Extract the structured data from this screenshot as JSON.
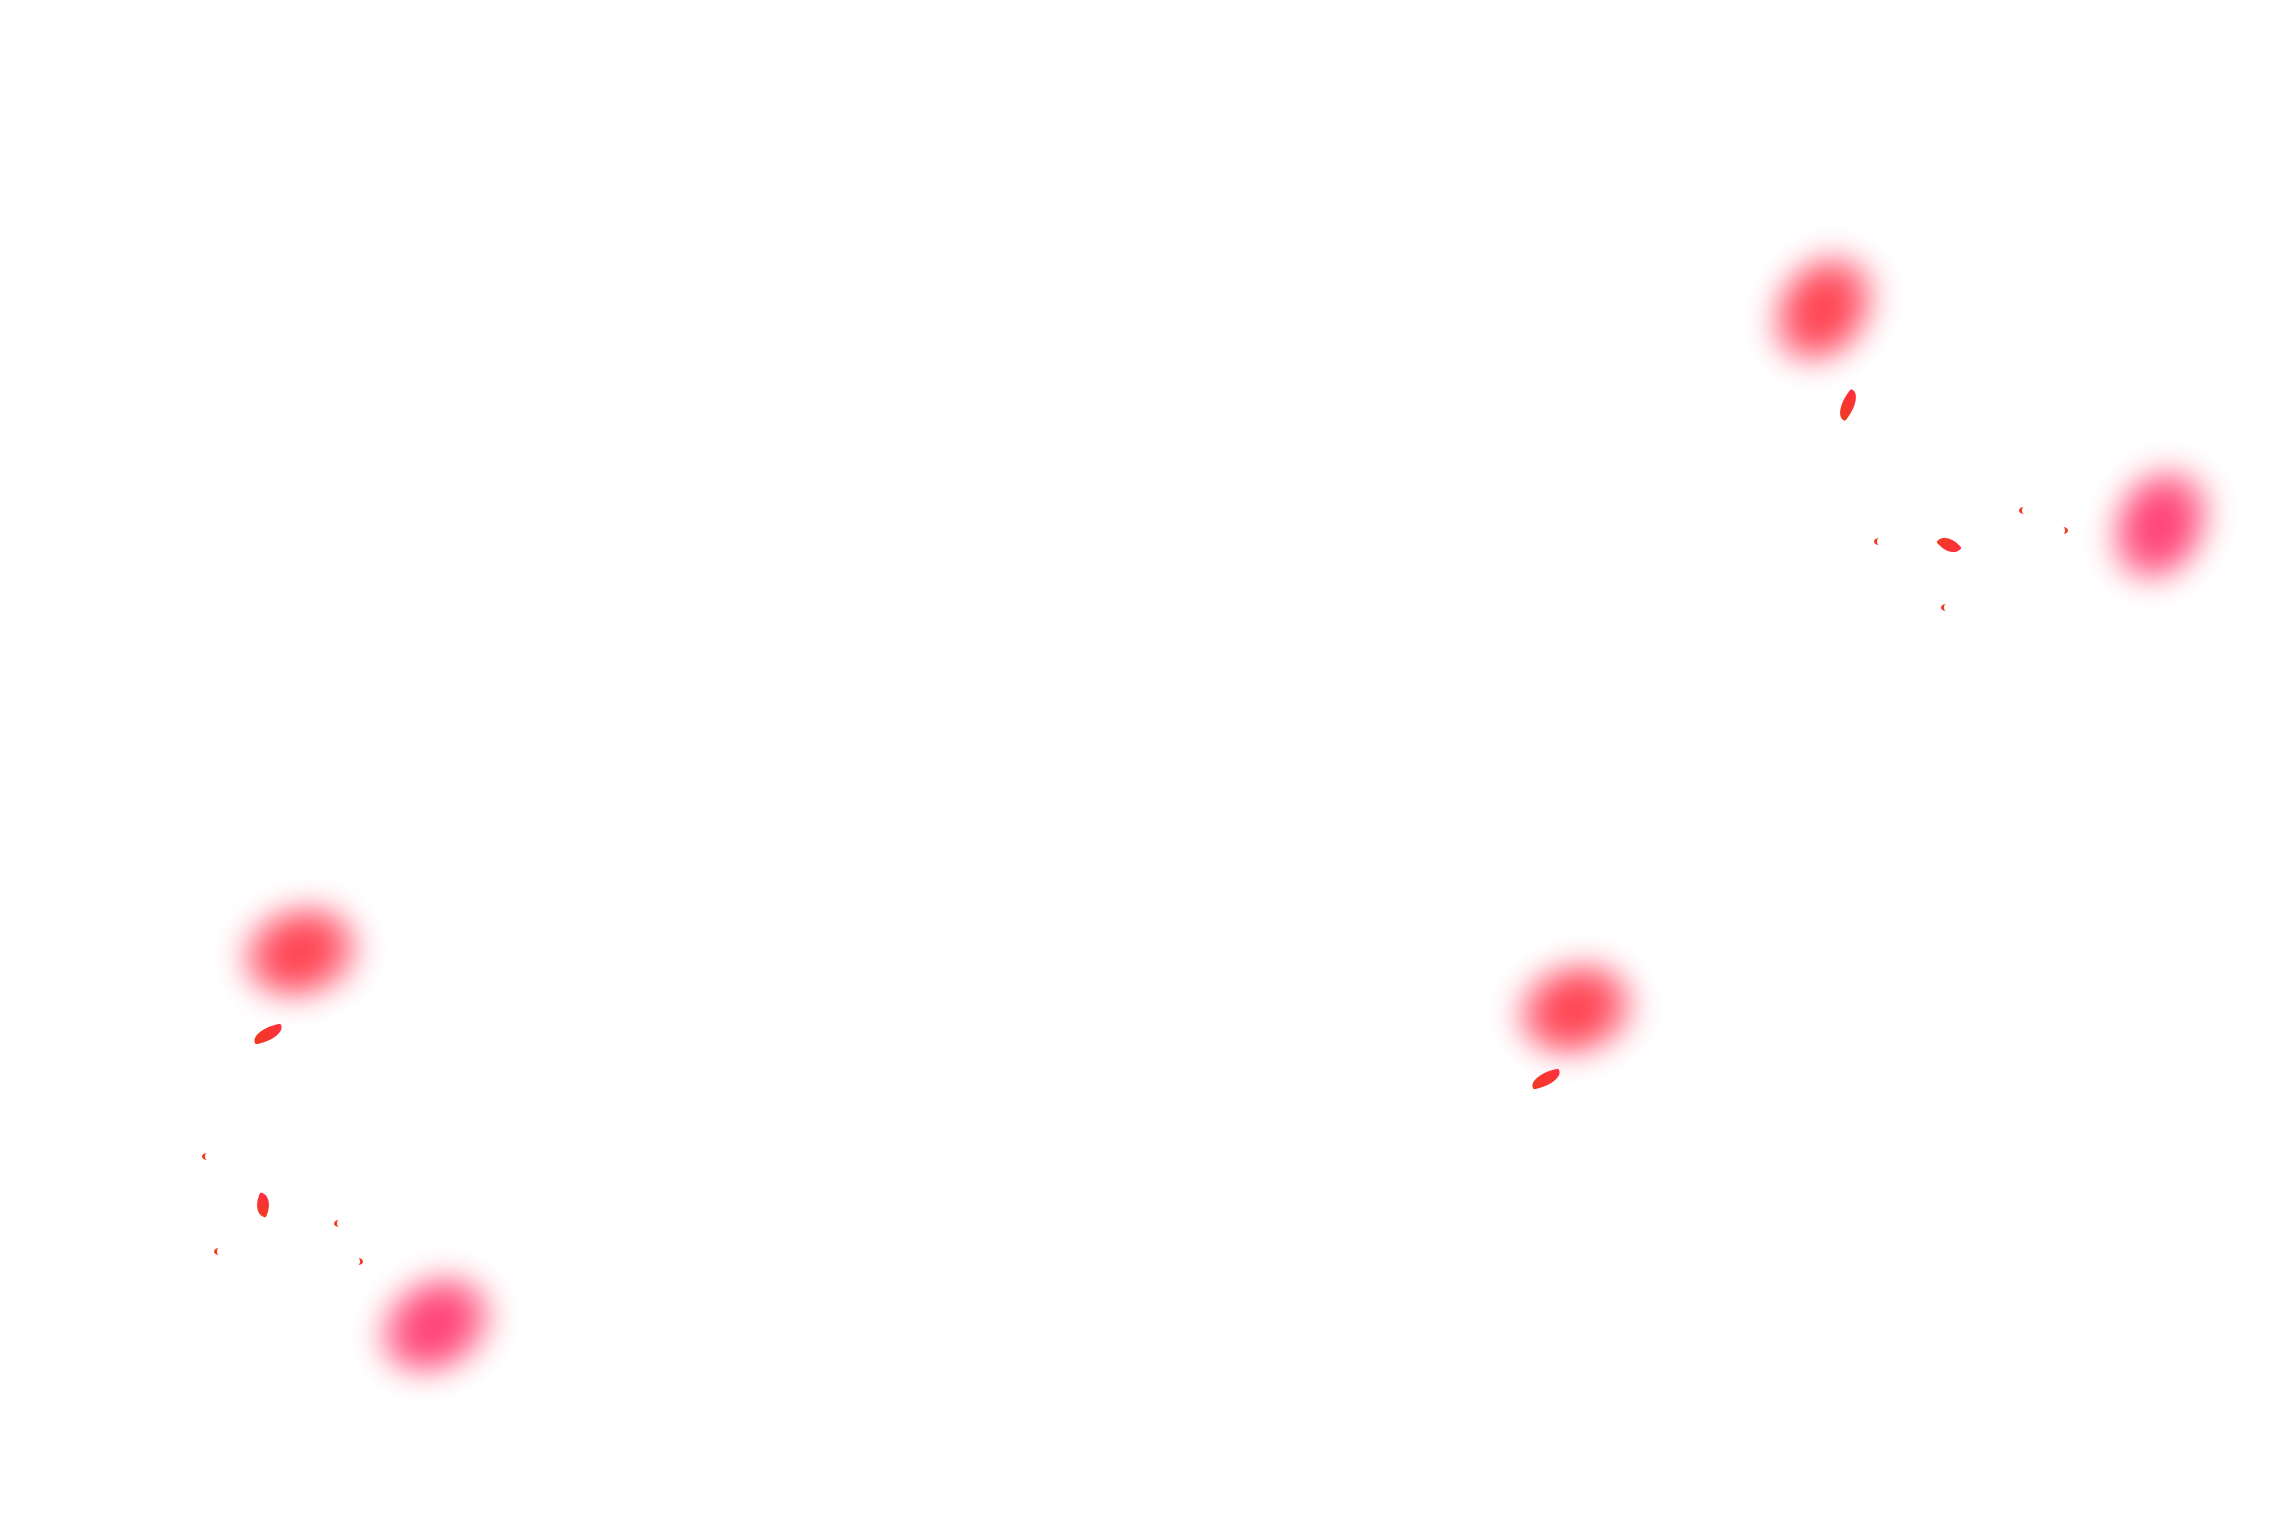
{
  "scene": {
    "background_color": "#ffffff",
    "petal_color": "#ff3040",
    "petal_highlight_color": "#ff2e6a",
    "fragment_color": "#f03a20"
  }
}
